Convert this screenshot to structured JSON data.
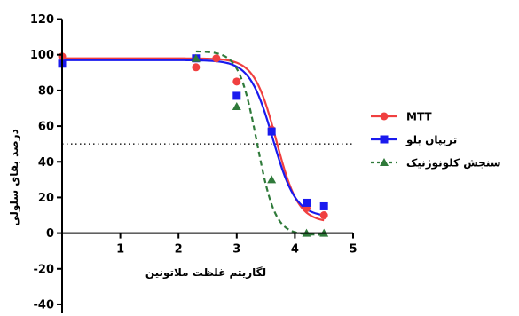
{
  "chart_data": {
    "type": "scatter",
    "xlabel": "لگاریتم غلظت ملاتونین",
    "ylabel": "درصد بقای سلولی",
    "xlim": [
      0,
      5
    ],
    "ylim": [
      -45,
      125
    ],
    "x_ticks": [
      {
        "value": 1,
        "label": "1"
      },
      {
        "value": 2,
        "label": "2"
      },
      {
        "value": 3,
        "label": "3"
      },
      {
        "value": 4,
        "label": "4"
      },
      {
        "value": 5,
        "label": "5"
      }
    ],
    "y_ticks": [
      {
        "value": 120,
        "label": "120"
      },
      {
        "value": 100,
        "label": "100"
      },
      {
        "value": 80,
        "label": "80"
      },
      {
        "value": 60,
        "label": "60"
      },
      {
        "value": 40,
        "label": "40"
      },
      {
        "value": 20,
        "label": "20"
      },
      {
        "value": 0,
        "label": "0"
      },
      {
        "value": -20,
        "label": "-20"
      },
      {
        "value": -40,
        "label": "-40"
      }
    ],
    "reference_line": {
      "y": 50,
      "style": "dotted"
    },
    "legend_position": "right",
    "series": [
      {
        "name": "MTT",
        "color": "#f04040",
        "marker": "circle",
        "line_style": "solid",
        "points": [
          {
            "x": 0,
            "y": 99
          },
          {
            "x": 2.3,
            "y": 93
          },
          {
            "x": 2.65,
            "y": 98
          },
          {
            "x": 3.0,
            "y": 85
          },
          {
            "x": 3.6,
            "y": 58
          },
          {
            "x": 4.2,
            "y": 14
          },
          {
            "x": 4.5,
            "y": 10
          }
        ],
        "curve": {
          "top": 98,
          "bottom": 6,
          "logIC50": 3.68,
          "slope": 2.3
        }
      },
      {
        "name": "تریپان بلو",
        "color": "#1a1aee",
        "marker": "square",
        "line_style": "solid",
        "points": [
          {
            "x": 0,
            "y": 95
          },
          {
            "x": 2.3,
            "y": 98
          },
          {
            "x": 3.0,
            "y": 77
          },
          {
            "x": 3.6,
            "y": 57
          },
          {
            "x": 4.2,
            "y": 17
          },
          {
            "x": 4.5,
            "y": 15
          }
        ],
        "curve": {
          "top": 97,
          "bottom": 9,
          "logIC50": 3.62,
          "slope": 2.2
        }
      },
      {
        "name": "سنجش کلونوژنیک",
        "color": "#2f7a3a",
        "marker": "triangle",
        "line_style": "dashed",
        "points": [
          {
            "x": 2.3,
            "y": 98
          },
          {
            "x": 3.0,
            "y": 71
          },
          {
            "x": 3.6,
            "y": 30
          },
          {
            "x": 4.2,
            "y": 0
          },
          {
            "x": 4.5,
            "y": 0
          }
        ],
        "curve": {
          "top": 102,
          "bottom": -1,
          "logIC50": 3.35,
          "slope": 2.8
        }
      }
    ]
  }
}
